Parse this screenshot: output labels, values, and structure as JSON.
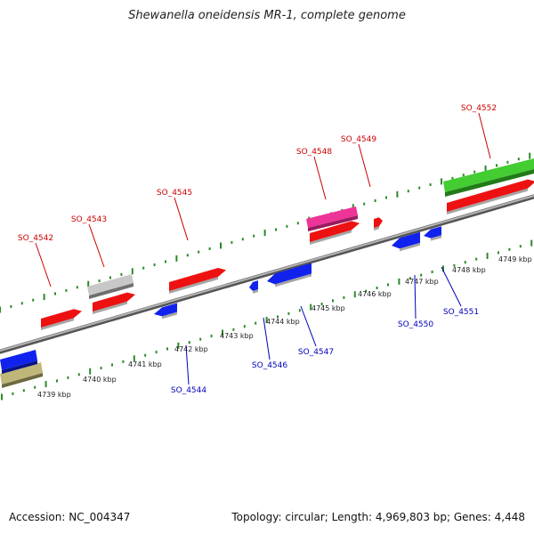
{
  "title": "Shewanella oneidensis MR-1, complete genome",
  "accession": "Accession: NC_004347",
  "info": "Topology: circular; Length: 4,969,803 bp; Genes: 4,448",
  "colors": {
    "backbone": "#8a8a8a",
    "tick": "#2a8a2a",
    "forward_label": "#cc0000",
    "reverse_label": "#0000bb"
  },
  "ticks": [
    {
      "label": "4739 kbp"
    },
    {
      "label": "4740 kbp"
    },
    {
      "label": "4741 kbp"
    },
    {
      "label": "4742 kbp"
    },
    {
      "label": "4743 kbp"
    },
    {
      "label": "4744 kbp"
    },
    {
      "label": "4745 kbp"
    },
    {
      "label": "4746 kbp"
    },
    {
      "label": "4747 kbp"
    },
    {
      "label": "4748 kbp"
    },
    {
      "label": "4749 kbp"
    }
  ],
  "genes": [
    {
      "name": "SO_4542",
      "strand": "forward",
      "color": "#ee1111"
    },
    {
      "name": "SO_4543",
      "strand": "forward",
      "color": "#ee1111"
    },
    {
      "name": "SO_4545",
      "strand": "forward",
      "color": "#ee1111"
    },
    {
      "name": "SO_4548",
      "strand": "forward",
      "color": "#ee1111"
    },
    {
      "name": "SO_4549",
      "strand": "forward",
      "color": "#ee1111"
    },
    {
      "name": "SO_4552",
      "strand": "forward",
      "color": "#ee1111"
    },
    {
      "name": "SO_4544",
      "strand": "reverse",
      "color": "#1122ee"
    },
    {
      "name": "SO_4546",
      "strand": "reverse",
      "color": "#1122ee"
    },
    {
      "name": "SO_4547",
      "strand": "reverse",
      "color": "#1122ee"
    },
    {
      "name": "SO_4550",
      "strand": "reverse",
      "color": "#1122ee"
    },
    {
      "name": "SO_4551",
      "strand": "reverse",
      "color": "#1122ee"
    }
  ]
}
